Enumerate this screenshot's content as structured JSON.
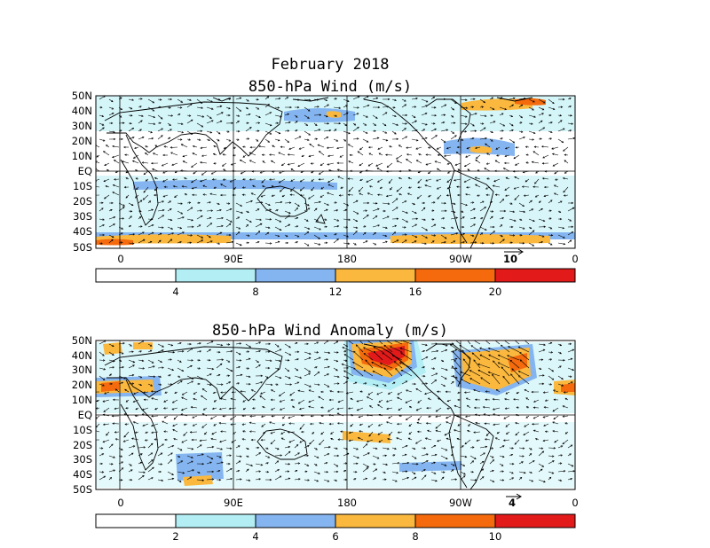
{
  "figure": {
    "month_title": "February 2018"
  },
  "colors": {
    "white": "#ffffff",
    "light_blue": "#b2eef4",
    "med_blue": "#85b5f0",
    "light_orange": "#fbb83e",
    "orange": "#f46a0c",
    "red": "#e21a1a"
  },
  "panels": [
    {
      "id": "wind",
      "title": "850-hPa Wind (m/s)",
      "lat_labels": [
        "50N",
        "40N",
        "30N",
        "20N",
        "10N",
        "EQ",
        "10S",
        "20S",
        "30S",
        "40S",
        "50S"
      ],
      "lon_labels": [
        "0",
        "90E",
        "180",
        "90W",
        "0"
      ],
      "reference_vector": "10",
      "colorbar_values": [
        "4",
        "8",
        "12",
        "16",
        "20"
      ],
      "icons": [
        "coastline-map",
        "wind-vector-arrows",
        "reference-arrow"
      ]
    },
    {
      "id": "anomaly",
      "title": "850-hPa Wind Anomaly (m/s)",
      "lat_labels": [
        "50N",
        "40N",
        "30N",
        "20N",
        "10N",
        "EQ",
        "10S",
        "20S",
        "30S",
        "40S",
        "50S"
      ],
      "lon_labels": [
        "0",
        "90E",
        "180",
        "90W",
        "0"
      ],
      "reference_vector": "4",
      "colorbar_values": [
        "2",
        "4",
        "6",
        "8",
        "10"
      ],
      "icons": [
        "coastline-map",
        "wind-vector-arrows",
        "reference-arrow"
      ]
    }
  ]
}
